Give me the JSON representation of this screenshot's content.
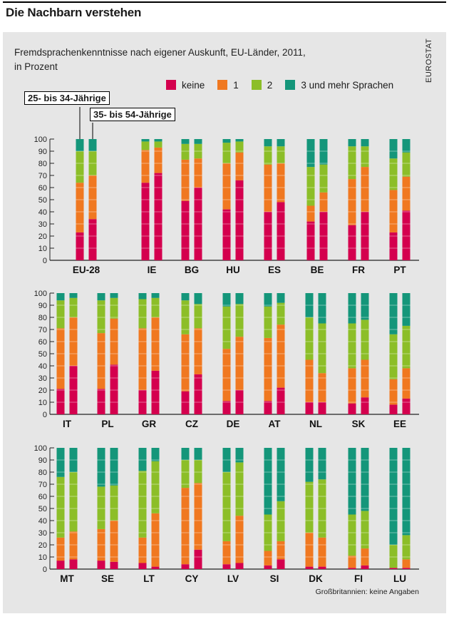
{
  "headline": "Die Nachbarn verstehen",
  "subtitle": [
    "Fremdsprachenkenntnisse nach eigener Auskunft, EU-Länder, 2011,",
    "in Prozent"
  ],
  "source": "EUROSTAT",
  "footnote": "Großbritannien: keine Angaben",
  "callouts": {
    "age_a": "25- bis 34-Jährige",
    "age_b": "35- bis 54-Jährige"
  },
  "colors": {
    "keine": "#d4004e",
    "one": "#f07820",
    "two": "#8cbe28",
    "three_plus": "#14967a",
    "panel": "#e6e6e6"
  },
  "legend": [
    {
      "label": "keine",
      "color": "#d4004e"
    },
    {
      "label": "1",
      "color": "#f07820"
    },
    {
      "label": "2",
      "color": "#8cbe28"
    },
    {
      "label": "3 und mehr Sprachen",
      "color": "#14967a"
    }
  ],
  "chart_data": {
    "type": "bar",
    "stacked": true,
    "ylim": [
      0,
      100
    ],
    "yticks": [
      0,
      10,
      20,
      30,
      40,
      50,
      60,
      70,
      80,
      90,
      100
    ],
    "series_names": [
      "keine",
      "1",
      "2",
      "3 und mehr Sprachen"
    ],
    "bar_groups": [
      "25- bis 34-Jährige",
      "35- bis 54-Jährige"
    ],
    "panels": [
      {
        "countries": [
          {
            "name": "EU-28",
            "bars": [
              [
                23,
                41,
                26,
                10
              ],
              [
                34,
                36,
                20,
                10
              ]
            ]
          },
          {
            "name": "IE",
            "bars": [
              [
                64,
                27,
                7,
                2
              ],
              [
                72,
                21,
                5,
                2
              ]
            ]
          },
          {
            "name": "BG",
            "bars": [
              [
                49,
                34,
                13,
                4
              ],
              [
                60,
                24,
                12,
                4
              ]
            ]
          },
          {
            "name": "HU",
            "bars": [
              [
                42,
                38,
                17,
                3
              ],
              [
                66,
                23,
                9,
                2
              ]
            ]
          },
          {
            "name": "ES",
            "bars": [
              [
                40,
                39,
                15,
                6
              ],
              [
                48,
                32,
                14,
                6
              ]
            ]
          },
          {
            "name": "BE",
            "bars": [
              [
                32,
                13,
                32,
                23
              ],
              [
                40,
                16,
                23,
                21
              ]
            ]
          },
          {
            "name": "FR",
            "bars": [
              [
                29,
                38,
                27,
                6
              ],
              [
                40,
                37,
                17,
                6
              ]
            ]
          },
          {
            "name": "PT",
            "bars": [
              [
                23,
                35,
                26,
                16
              ],
              [
                41,
                28,
                20,
                11
              ]
            ]
          }
        ]
      },
      {
        "countries": [
          {
            "name": "IT",
            "bars": [
              [
                21,
                50,
                23,
                6
              ],
              [
                40,
                40,
                16,
                4
              ]
            ]
          },
          {
            "name": "PL",
            "bars": [
              [
                21,
                46,
                27,
                6
              ],
              [
                41,
                38,
                17,
                4
              ]
            ]
          },
          {
            "name": "GR",
            "bars": [
              [
                20,
                51,
                24,
                5
              ],
              [
                36,
                44,
                16,
                4
              ]
            ]
          },
          {
            "name": "CZ",
            "bars": [
              [
                19,
                47,
                28,
                6
              ],
              [
                33,
                38,
                20,
                9
              ]
            ]
          },
          {
            "name": "DE",
            "bars": [
              [
                11,
                43,
                35,
                11
              ],
              [
                20,
                44,
                27,
                9
              ]
            ]
          },
          {
            "name": "AT",
            "bars": [
              [
                11,
                52,
                26,
                11
              ],
              [
                22,
                52,
                18,
                8
              ]
            ]
          },
          {
            "name": "NL",
            "bars": [
              [
                10,
                35,
                35,
                20
              ],
              [
                10,
                24,
                41,
                25
              ]
            ]
          },
          {
            "name": "SK",
            "bars": [
              [
                9,
                29,
                37,
                25
              ],
              [
                14,
                31,
                33,
                22
              ]
            ]
          },
          {
            "name": "EE",
            "bars": [
              [
                8,
                21,
                37,
                34
              ],
              [
                13,
                25,
                35,
                27
              ]
            ]
          }
        ]
      },
      {
        "countries": [
          {
            "name": "MT",
            "bars": [
              [
                7,
                19,
                50,
                24
              ],
              [
                8,
                23,
                49,
                20
              ]
            ]
          },
          {
            "name": "SE",
            "bars": [
              [
                7,
                26,
                35,
                32
              ],
              [
                6,
                34,
                29,
                31
              ]
            ]
          },
          {
            "name": "LT",
            "bars": [
              [
                5,
                21,
                55,
                19
              ],
              [
                2,
                44,
                43,
                11
              ]
            ]
          },
          {
            "name": "CY",
            "bars": [
              [
                4,
                63,
                23,
                10
              ],
              [
                16,
                55,
                19,
                10
              ]
            ]
          },
          {
            "name": "LV",
            "bars": [
              [
                4,
                19,
                57,
                20
              ],
              [
                5,
                39,
                44,
                12
              ]
            ]
          },
          {
            "name": "SI",
            "bars": [
              [
                3,
                12,
                30,
                55
              ],
              [
                8,
                15,
                33,
                44
              ]
            ]
          },
          {
            "name": "DK",
            "bars": [
              [
                2,
                28,
                42,
                28
              ],
              [
                2,
                24,
                48,
                26
              ]
            ]
          },
          {
            "name": "FI",
            "bars": [
              [
                1,
                10,
                34,
                55
              ],
              [
                3,
                14,
                31,
                52
              ]
            ]
          },
          {
            "name": "LU",
            "bars": [
              [
                1,
                0,
                19,
                80
              ],
              [
                1,
                7,
                20,
                72
              ]
            ]
          }
        ]
      }
    ]
  }
}
